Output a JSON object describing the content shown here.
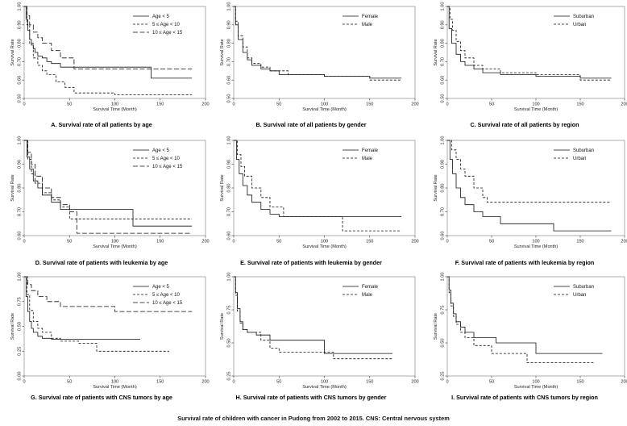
{
  "figure_caption": "Survival rate of children with cancer in Pudong from 2002 to 2015. CNS: Central nervous system",
  "chart_data": [
    {
      "type": "line",
      "panel": "A",
      "title": "A. Survival rate of all patients by age",
      "xlabel": "Survival Time (Month)",
      "ylabel": "Survival Rate",
      "xlim": [
        0,
        200
      ],
      "ylim": [
        0.5,
        1.0
      ],
      "xticks": [
        0,
        50,
        100,
        150,
        200
      ],
      "yticks": [
        0.5,
        0.6,
        0.7,
        0.8,
        0.9,
        1.0
      ],
      "ytick_labels": [
        "0.50",
        "0.60",
        "0.70",
        "0.80",
        "0.90",
        "1.00"
      ],
      "legend_position": "top-right",
      "series": [
        {
          "name": "Age < 5",
          "style": "solid",
          "x": [
            0,
            2,
            4,
            6,
            8,
            10,
            12,
            15,
            20,
            25,
            30,
            40,
            140,
            185
          ],
          "y": [
            1.0,
            0.93,
            0.87,
            0.82,
            0.79,
            0.77,
            0.75,
            0.73,
            0.72,
            0.7,
            0.69,
            0.67,
            0.61,
            0.61
          ]
        },
        {
          "name": "5 ≤ Age < 10",
          "style": "dashed",
          "x": [
            0,
            3,
            6,
            10,
            15,
            20,
            25,
            35,
            45,
            55,
            100,
            185
          ],
          "y": [
            1.0,
            0.9,
            0.8,
            0.72,
            0.68,
            0.65,
            0.63,
            0.59,
            0.56,
            0.53,
            0.52,
            0.52
          ]
        },
        {
          "name": "10 ≤ Age < 15",
          "style": "longdash",
          "x": [
            0,
            3,
            6,
            10,
            15,
            20,
            30,
            40,
            55,
            185
          ],
          "y": [
            1.0,
            0.95,
            0.9,
            0.86,
            0.83,
            0.8,
            0.76,
            0.72,
            0.66,
            0.66
          ]
        }
      ]
    },
    {
      "type": "line",
      "panel": "B",
      "title": "B. Survival rate of all patients by gender",
      "xlabel": "Survival Time (Month)",
      "ylabel": "Survival Rate",
      "xlim": [
        0,
        200
      ],
      "ylim": [
        0.5,
        1.0
      ],
      "xticks": [
        0,
        50,
        100,
        150,
        200
      ],
      "yticks": [
        0.5,
        0.6,
        0.7,
        0.8,
        0.9,
        1.0
      ],
      "ytick_labels": [
        "0.50",
        "0.60",
        "0.70",
        "0.80",
        "0.90",
        "1.00"
      ],
      "legend_position": "top-right",
      "series": [
        {
          "name": "Female",
          "style": "solid",
          "x": [
            0,
            2,
            5,
            10,
            15,
            20,
            30,
            40,
            50,
            100,
            150,
            185
          ],
          "y": [
            1.0,
            0.9,
            0.82,
            0.75,
            0.71,
            0.68,
            0.66,
            0.65,
            0.63,
            0.62,
            0.61,
            0.61
          ]
        },
        {
          "name": "Male",
          "style": "dashed",
          "x": [
            0,
            2,
            5,
            10,
            15,
            20,
            30,
            40,
            60,
            100,
            150,
            185
          ],
          "y": [
            1.0,
            0.92,
            0.84,
            0.78,
            0.72,
            0.69,
            0.67,
            0.65,
            0.63,
            0.62,
            0.6,
            0.6
          ]
        }
      ]
    },
    {
      "type": "line",
      "panel": "C",
      "title": "C. Survival rate of all patients by region",
      "xlabel": "Survival Time (Month)",
      "ylabel": "Survival Rate",
      "xlim": [
        0,
        200
      ],
      "ylim": [
        0.5,
        1.0
      ],
      "xticks": [
        0,
        50,
        100,
        150,
        200
      ],
      "yticks": [
        0.5,
        0.6,
        0.7,
        0.8,
        0.9,
        1.0
      ],
      "ytick_labels": [
        "0.50",
        "0.60",
        "0.70",
        "0.80",
        "0.90",
        "1.00"
      ],
      "legend_position": "top-right",
      "series": [
        {
          "name": "Suburban",
          "style": "solid",
          "x": [
            0,
            2,
            5,
            10,
            15,
            20,
            30,
            40,
            60,
            100,
            150,
            185
          ],
          "y": [
            1.0,
            0.88,
            0.8,
            0.74,
            0.7,
            0.68,
            0.66,
            0.64,
            0.63,
            0.62,
            0.61,
            0.61
          ]
        },
        {
          "name": "Urban",
          "style": "dashed",
          "x": [
            0,
            3,
            6,
            10,
            15,
            20,
            30,
            40,
            60,
            100,
            150,
            185
          ],
          "y": [
            1.0,
            0.93,
            0.87,
            0.81,
            0.76,
            0.72,
            0.68,
            0.66,
            0.64,
            0.63,
            0.6,
            0.6
          ]
        }
      ]
    },
    {
      "type": "line",
      "panel": "D",
      "title": "D. Survival rate of patients with leukemia by age",
      "xlabel": "Survival Time (Month)",
      "ylabel": "Survival Rate",
      "xlim": [
        0,
        200
      ],
      "ylim": [
        0.6,
        1.0
      ],
      "xticks": [
        0,
        50,
        100,
        150,
        200
      ],
      "yticks": [
        0.6,
        0.7,
        0.8,
        0.9,
        1.0
      ],
      "ytick_labels": [
        "0.60",
        "0.70",
        "0.80",
        "0.90",
        "1.00"
      ],
      "legend_position": "top-right",
      "series": [
        {
          "name": "Age < 5",
          "style": "solid",
          "x": [
            0,
            3,
            6,
            10,
            15,
            20,
            30,
            40,
            120,
            185
          ],
          "y": [
            1.0,
            0.93,
            0.88,
            0.83,
            0.8,
            0.77,
            0.74,
            0.71,
            0.64,
            0.64
          ]
        },
        {
          "name": "5 ≤ Age < 10",
          "style": "dashed",
          "x": [
            0,
            4,
            8,
            12,
            20,
            30,
            40,
            50,
            185
          ],
          "y": [
            1.0,
            0.92,
            0.86,
            0.82,
            0.78,
            0.75,
            0.72,
            0.67,
            0.67
          ]
        },
        {
          "name": "10 ≤ Age < 15",
          "style": "longdash",
          "x": [
            0,
            4,
            8,
            12,
            20,
            30,
            40,
            50,
            58,
            185
          ],
          "y": [
            1.0,
            0.95,
            0.9,
            0.85,
            0.8,
            0.76,
            0.73,
            0.7,
            0.61,
            0.61
          ]
        }
      ]
    },
    {
      "type": "line",
      "panel": "E",
      "title": "E. Survival rate of patients with leukemia by gender",
      "xlabel": "Survival Time (Month)",
      "ylabel": "Survival Rate",
      "xlim": [
        0,
        200
      ],
      "ylim": [
        0.6,
        1.0
      ],
      "xticks": [
        0,
        50,
        100,
        150,
        200
      ],
      "yticks": [
        0.6,
        0.7,
        0.8,
        0.9,
        1.0
      ],
      "ytick_labels": [
        "0.60",
        "0.70",
        "0.80",
        "0.90",
        "1.00"
      ],
      "legend_position": "top-right",
      "series": [
        {
          "name": "Female",
          "style": "solid",
          "x": [
            0,
            3,
            6,
            10,
            15,
            20,
            30,
            40,
            50,
            185
          ],
          "y": [
            1.0,
            0.92,
            0.86,
            0.81,
            0.77,
            0.74,
            0.71,
            0.69,
            0.68,
            0.68
          ]
        },
        {
          "name": "Male",
          "style": "dashed",
          "x": [
            0,
            4,
            8,
            12,
            20,
            30,
            40,
            55,
            120,
            185
          ],
          "y": [
            1.0,
            0.94,
            0.89,
            0.85,
            0.8,
            0.76,
            0.72,
            0.68,
            0.62,
            0.62
          ]
        }
      ]
    },
    {
      "type": "line",
      "panel": "F",
      "title": "F. Survival rate of patients with leukemia by region",
      "xlabel": "Survival Time (Month)",
      "ylabel": "Survival Rate",
      "xlim": [
        0,
        200
      ],
      "ylim": [
        0.6,
        1.0
      ],
      "xticks": [
        0,
        50,
        100,
        150,
        200
      ],
      "yticks": [
        0.6,
        0.7,
        0.8,
        0.9,
        1.0
      ],
      "ytick_labels": [
        "0.60",
        "0.70",
        "0.80",
        "0.90",
        "1.00"
      ],
      "legend_position": "top-right",
      "series": [
        {
          "name": "Suburban",
          "style": "solid",
          "x": [
            0,
            3,
            6,
            10,
            15,
            20,
            30,
            40,
            60,
            120,
            185
          ],
          "y": [
            1.0,
            0.92,
            0.86,
            0.8,
            0.76,
            0.73,
            0.7,
            0.68,
            0.65,
            0.62,
            0.62
          ]
        },
        {
          "name": "Urban",
          "style": "dashed",
          "x": [
            0,
            5,
            10,
            15,
            20,
            30,
            40,
            45,
            185
          ],
          "y": [
            1.0,
            0.96,
            0.92,
            0.88,
            0.85,
            0.8,
            0.76,
            0.74,
            0.74
          ]
        }
      ]
    },
    {
      "type": "line",
      "panel": "G",
      "title": "G. Survival rate of patients with CNS tumors by age",
      "xlabel": "Survival Time (Month)",
      "ylabel": "Survival Rate",
      "xlim": [
        0,
        200
      ],
      "ylim": [
        0.0,
        1.0
      ],
      "xticks": [
        0,
        50,
        100,
        150,
        200
      ],
      "yticks": [
        0.0,
        0.25,
        0.5,
        0.75,
        1.0
      ],
      "ytick_labels": [
        "0.00",
        "0.25",
        "0.50",
        "0.75",
        "1.00"
      ],
      "legend_position": "top-right",
      "series": [
        {
          "name": "Age < 5",
          "style": "solid",
          "x": [
            0,
            2,
            4,
            6,
            8,
            10,
            15,
            20,
            30,
            128
          ],
          "y": [
            1.0,
            0.8,
            0.65,
            0.55,
            0.48,
            0.44,
            0.4,
            0.38,
            0.37,
            0.37
          ]
        },
        {
          "name": "5 ≤ Age < 10",
          "style": "dashed",
          "x": [
            0,
            3,
            6,
            10,
            15,
            20,
            30,
            40,
            60,
            80,
            160
          ],
          "y": [
            1.0,
            0.82,
            0.66,
            0.55,
            0.48,
            0.44,
            0.38,
            0.35,
            0.33,
            0.25,
            0.25
          ]
        },
        {
          "name": "10 ≤ Age < 15",
          "style": "longdash",
          "x": [
            0,
            4,
            8,
            15,
            25,
            40,
            100,
            185
          ],
          "y": [
            1.0,
            0.92,
            0.86,
            0.8,
            0.75,
            0.7,
            0.65,
            0.65
          ]
        }
      ]
    },
    {
      "type": "line",
      "panel": "H",
      "title": "H. Survival rate of patients with CNS tumors by gender",
      "xlabel": "Survival Time (Month)",
      "ylabel": "Survival Rate",
      "xlim": [
        0,
        200
      ],
      "ylim": [
        0.25,
        1.0
      ],
      "xticks": [
        0,
        50,
        100,
        150,
        200
      ],
      "yticks": [
        0.25,
        0.5,
        0.75,
        1.0
      ],
      "ytick_labels": [
        "0.25",
        "0.50",
        "0.75",
        "1.00"
      ],
      "legend_position": "top-right",
      "series": [
        {
          "name": "Female",
          "style": "solid",
          "x": [
            0,
            2,
            4,
            7,
            10,
            15,
            25,
            40,
            100,
            175
          ],
          "y": [
            1.0,
            0.88,
            0.76,
            0.66,
            0.6,
            0.58,
            0.56,
            0.52,
            0.42,
            0.42
          ]
        },
        {
          "name": "Male",
          "style": "dashed",
          "x": [
            0,
            2,
            4,
            7,
            10,
            15,
            30,
            40,
            50,
            110,
            175
          ],
          "y": [
            1.0,
            0.86,
            0.74,
            0.65,
            0.6,
            0.58,
            0.52,
            0.46,
            0.43,
            0.38,
            0.38
          ]
        }
      ]
    },
    {
      "type": "line",
      "panel": "I",
      "title": "I. Survival rate of patients with CNS tumors by region",
      "xlabel": "Survival Time (Month)",
      "ylabel": "Survival Rate",
      "xlim": [
        0,
        200
      ],
      "ylim": [
        0.25,
        1.0
      ],
      "xticks": [
        0,
        50,
        100,
        150,
        200
      ],
      "yticks": [
        0.25,
        0.5,
        0.75,
        1.0
      ],
      "ytick_labels": [
        "0.25",
        "0.50",
        "0.75",
        "1.00"
      ],
      "legend_position": "top-right",
      "series": [
        {
          "name": "Suburban",
          "style": "solid",
          "x": [
            0,
            2,
            4,
            7,
            10,
            15,
            20,
            30,
            55,
            100,
            175
          ],
          "y": [
            1.0,
            0.9,
            0.8,
            0.72,
            0.66,
            0.62,
            0.58,
            0.54,
            0.5,
            0.42,
            0.42
          ]
        },
        {
          "name": "Urban",
          "style": "dashed",
          "x": [
            0,
            2,
            4,
            7,
            10,
            15,
            20,
            30,
            50,
            90,
            165
          ],
          "y": [
            1.0,
            0.88,
            0.78,
            0.7,
            0.64,
            0.58,
            0.54,
            0.48,
            0.42,
            0.35,
            0.35
          ]
        }
      ]
    }
  ]
}
